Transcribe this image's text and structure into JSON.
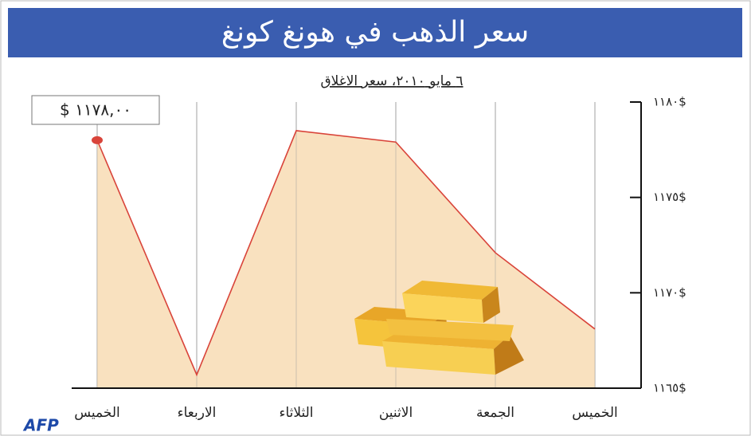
{
  "chart_data": {
    "type": "area",
    "title": "سعر الذهب في هونغ كونغ",
    "subtitle": "٦ مايو ٢٠١٠، سعر الاغلاق",
    "credit": "AFP",
    "categories": [
      "الخميس",
      "الاربعاء",
      "الثلاثاء",
      "الاثنين",
      "الجمعة",
      "الخميس"
    ],
    "series": [
      {
        "color": "#d9443a",
        "fill": "#f8dcb4",
        "values": [
          1178,
          1165.7,
          1178.5,
          1177.9,
          1172.1,
          1168.1
        ],
        "value_labels": [
          "$ ١١٧٨,٠٠",
          null,
          null,
          null,
          null,
          null
        ]
      }
    ],
    "ylim": [
      1165,
      1180
    ],
    "yticks": [
      {
        "value": 1165,
        "label": "١١٦٥$"
      },
      {
        "value": 1170,
        "label": "١١٧٠$"
      },
      {
        "value": 1175,
        "label": "١١٧٥$"
      },
      {
        "value": 1180,
        "label": "١١٨٠$"
      }
    ],
    "y_axis_side": "right",
    "grid": true
  }
}
